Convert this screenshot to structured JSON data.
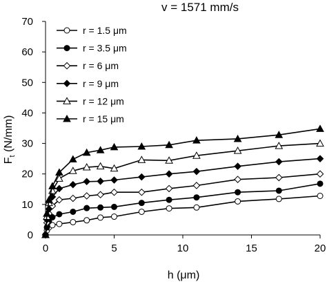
{
  "chart_data": {
    "type": "line",
    "title": "v = 1571 mm/s",
    "xlabel": "h (μm)",
    "ylabel": "Ft (N/mm)",
    "ylabel_main": "F",
    "ylabel_sub": "t",
    "ylabel_rest": " (N/mm)",
    "xlim": [
      0,
      20
    ],
    "ylim": [
      0,
      70
    ],
    "xticks": [
      0,
      5,
      10,
      15,
      20
    ],
    "yticks": [
      0,
      10,
      20,
      30,
      40,
      50,
      60,
      70
    ],
    "xtick_labels": [
      "0",
      "5",
      "10",
      "15",
      "20"
    ],
    "ytick_labels": [
      "0",
      "10",
      "20",
      "30",
      "40",
      "50",
      "60",
      "70"
    ],
    "grid": false,
    "legend_position": "top-left",
    "series": [
      {
        "name": "r = 1.5 μm",
        "marker": "circle-open",
        "x": [
          0,
          0.1,
          0.25,
          0.5,
          1,
          2,
          3,
          4,
          5,
          7,
          9,
          11,
          14,
          17,
          20
        ],
        "y": [
          0,
          1.5,
          2.5,
          3.2,
          3.6,
          4.2,
          4.8,
          5.7,
          6.0,
          7.6,
          8.7,
          9.0,
          11.0,
          11.8,
          12.8
        ]
      },
      {
        "name": "r = 3.5 μm",
        "marker": "circle-filled",
        "x": [
          0,
          0.1,
          0.25,
          0.5,
          1,
          2,
          3,
          4,
          5,
          7,
          9,
          11,
          14,
          17,
          20
        ],
        "y": [
          0,
          2.5,
          4.5,
          5.8,
          6.8,
          7.6,
          8.8,
          9.0,
          9.2,
          10.5,
          11.5,
          12.3,
          14.0,
          14.5,
          16.8
        ]
      },
      {
        "name": "r = 6 μm",
        "marker": "diamond-open",
        "x": [
          0,
          0.1,
          0.25,
          0.5,
          1,
          2,
          3,
          4,
          5,
          7,
          9,
          11,
          14,
          17,
          20
        ],
        "y": [
          0,
          4.0,
          7.0,
          9.5,
          11.5,
          12.0,
          12.8,
          13.2,
          14.0,
          14.0,
          15.2,
          16.2,
          18.2,
          18.8,
          20.0
        ]
      },
      {
        "name": "r = 9 μm",
        "marker": "diamond-filled",
        "x": [
          0,
          0.1,
          0.25,
          0.5,
          1,
          2,
          3,
          4,
          5,
          7,
          9,
          11,
          14,
          17,
          20
        ],
        "y": [
          0,
          5.0,
          8.5,
          12.5,
          15.2,
          16.5,
          17.5,
          17.6,
          18.0,
          19.0,
          20.0,
          20.8,
          22.5,
          24.0,
          25.0
        ]
      },
      {
        "name": "r = 12 μm",
        "marker": "triangle-open",
        "x": [
          0,
          0.1,
          0.25,
          0.5,
          1,
          2,
          3,
          4,
          5,
          7,
          9,
          11,
          14,
          17,
          20
        ],
        "y": [
          0,
          6.0,
          10.5,
          14.5,
          18.5,
          21.0,
          22.2,
          22.5,
          21.8,
          24.6,
          24.4,
          26.0,
          27.6,
          29.2,
          30.0
        ]
      },
      {
        "name": "r = 15 μm",
        "marker": "triangle-filled",
        "x": [
          0,
          0.1,
          0.25,
          0.5,
          1,
          2,
          3,
          4,
          5,
          7,
          9,
          11,
          14,
          17,
          20
        ],
        "y": [
          0,
          7.0,
          11.5,
          16.0,
          20.5,
          24.8,
          27.0,
          27.8,
          28.8,
          29.0,
          29.5,
          31.0,
          31.5,
          32.8,
          34.8
        ]
      }
    ]
  }
}
